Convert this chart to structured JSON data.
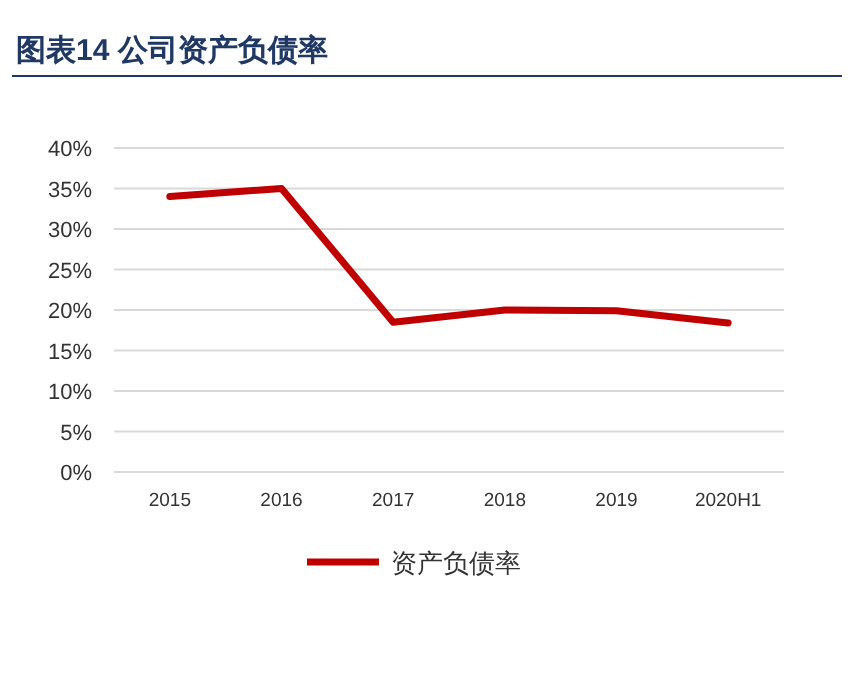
{
  "chart_data": {
    "type": "line",
    "title": "图表14   公司资产负债率",
    "categories": [
      "2015",
      "2016",
      "2017",
      "2018",
      "2019",
      "2020H1"
    ],
    "series": [
      {
        "name": "资产负债率",
        "color": "#c00000",
        "values": [
          34,
          35,
          18.5,
          20,
          19.9,
          18.4
        ]
      }
    ],
    "ylim": [
      0,
      40
    ],
    "yticks": [
      {
        "value": 0,
        "label": "0%"
      },
      {
        "value": 5,
        "label": "5%"
      },
      {
        "value": 10,
        "label": "10%"
      },
      {
        "value": 15,
        "label": "15%"
      },
      {
        "value": 20,
        "label": "20%"
      },
      {
        "value": 25,
        "label": "25%"
      },
      {
        "value": 30,
        "label": "30%"
      },
      {
        "value": 35,
        "label": "35%"
      },
      {
        "value": 40,
        "label": "40%"
      }
    ],
    "grid": "y",
    "legend": "bottom",
    "marker": "none",
    "line_style": "solid"
  }
}
